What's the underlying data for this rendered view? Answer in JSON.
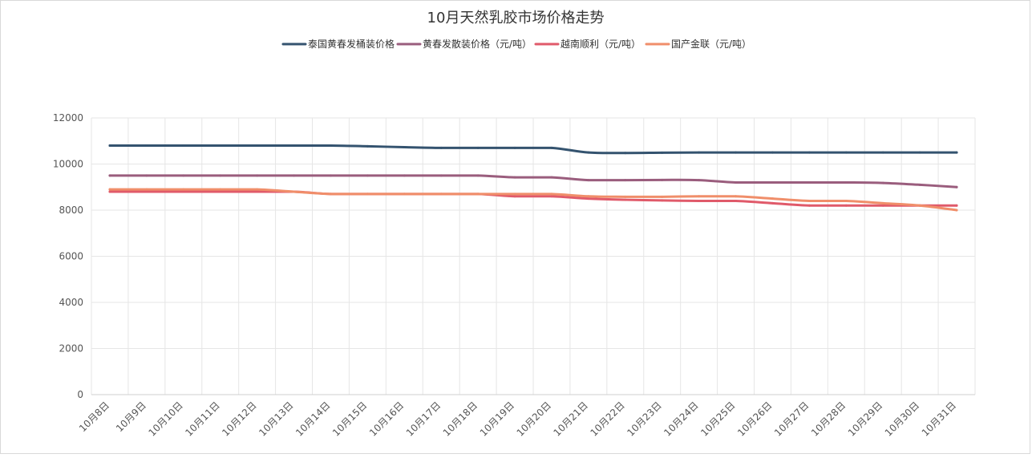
{
  "chart_data": {
    "type": "line",
    "title": "10月天然乳胶市场价格走势",
    "xlabel": "",
    "ylabel": "",
    "ylim": [
      0,
      12000
    ],
    "yticks": [
      0,
      2000,
      4000,
      6000,
      8000,
      10000,
      12000
    ],
    "grid": true,
    "legend_position": "top-center",
    "categories": [
      "10月8日",
      "10月9日",
      "10月10日",
      "10月11日",
      "10月12日",
      "10月13日",
      "10月14日",
      "10月15日",
      "10月16日",
      "10月17日",
      "10月18日",
      "10月19日",
      "10月20日",
      "10月21日",
      "10月22日",
      "10月23日",
      "10月24日",
      "10月25日",
      "10月26日",
      "10月27日",
      "10月28日",
      "10月29日",
      "10月30日",
      "10月31日"
    ],
    "series": [
      {
        "name": "泰国黄春发桶装价格",
        "color": "#34536f",
        "values": [
          10800,
          10800,
          10800,
          10800,
          10800,
          10800,
          10800,
          10770,
          10730,
          10700,
          10700,
          10700,
          10700,
          10500,
          10480,
          10490,
          10500,
          10500,
          10500,
          10500,
          10500,
          10500,
          10500,
          10500
        ]
      },
      {
        "name": "黄春发散装价格（元/吨）",
        "color": "#9a5d7d",
        "values": [
          9500,
          9500,
          9500,
          9500,
          9500,
          9500,
          9500,
          9500,
          9500,
          9500,
          9500,
          9420,
          9420,
          9300,
          9300,
          9310,
          9300,
          9200,
          9200,
          9200,
          9200,
          9180,
          9100,
          9000
        ]
      },
      {
        "name": "越南顺利（元/吨）",
        "color": "#e05a6a",
        "values": [
          8800,
          8800,
          8800,
          8800,
          8800,
          8800,
          8700,
          8700,
          8700,
          8700,
          8700,
          8600,
          8600,
          8500,
          8450,
          8420,
          8400,
          8400,
          8300,
          8200,
          8200,
          8200,
          8200,
          8200
        ]
      },
      {
        "name": "国产金联（元/吨）",
        "color": "#f08e6a",
        "values": [
          8900,
          8900,
          8900,
          8900,
          8900,
          8800,
          8700,
          8700,
          8700,
          8700,
          8700,
          8700,
          8700,
          8600,
          8580,
          8580,
          8600,
          8600,
          8500,
          8400,
          8400,
          8300,
          8200,
          8000
        ]
      }
    ]
  }
}
